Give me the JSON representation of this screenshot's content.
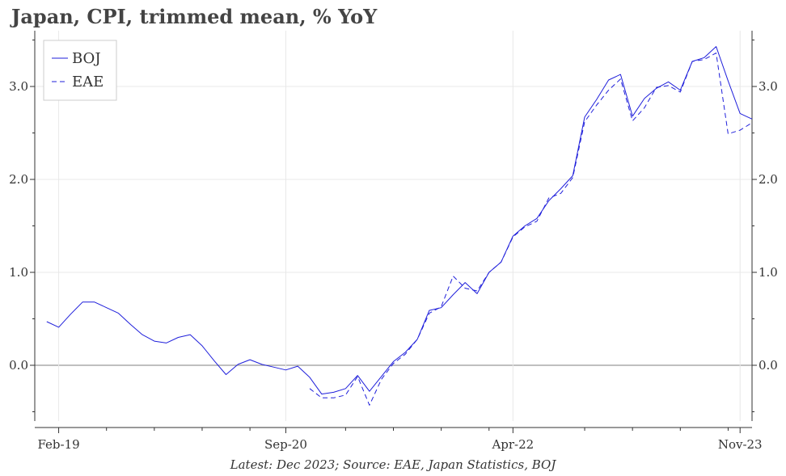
{
  "chart_data": {
    "type": "line",
    "title": "Japan, CPI, trimmed mean, % YoY",
    "xlabel": "",
    "ylabel": "",
    "source_note": "Latest: Dec 2023; Source: EAE, Japan Statistics, BOJ",
    "x_start": "2019-01",
    "x_tick_labels": [
      "Feb-19",
      "Sep-20",
      "Apr-22",
      "Nov-23"
    ],
    "y_tick_labels": [
      "0.0",
      "1.0",
      "2.0",
      "3.0"
    ],
    "ylim": [
      -0.6,
      3.6
    ],
    "xlim_months": [
      -1.0,
      59.0
    ],
    "grid": true,
    "legend_position": "top-left",
    "colors": {
      "series": "#1f1fdb",
      "zero_line": "#999999",
      "grid": "#e8e8e8",
      "axis": "#333333"
    },
    "series": [
      {
        "name": "BOJ",
        "style": "solid",
        "x": [
          "2019-01",
          "2019-02",
          "2019-03",
          "2019-04",
          "2019-05",
          "2019-06",
          "2019-07",
          "2019-08",
          "2019-09",
          "2019-10",
          "2019-11",
          "2019-12",
          "2020-01",
          "2020-02",
          "2020-03",
          "2020-04",
          "2020-05",
          "2020-06",
          "2020-07",
          "2020-08",
          "2020-09",
          "2020-10",
          "2020-11",
          "2020-12",
          "2021-01",
          "2021-02",
          "2021-03",
          "2021-04",
          "2021-05",
          "2021-06",
          "2021-07",
          "2021-08",
          "2021-09",
          "2021-10",
          "2021-11",
          "2021-12",
          "2022-01",
          "2022-02",
          "2022-03",
          "2022-04",
          "2022-05",
          "2022-06",
          "2022-07",
          "2022-08",
          "2022-09",
          "2022-10",
          "2022-11",
          "2022-12",
          "2023-01",
          "2023-02",
          "2023-03",
          "2023-04",
          "2023-05",
          "2023-06",
          "2023-07",
          "2023-08",
          "2023-09",
          "2023-10",
          "2023-11",
          "2023-12"
        ],
        "values": [
          0.47,
          0.41,
          0.55,
          0.68,
          0.68,
          0.62,
          0.56,
          0.44,
          0.33,
          0.26,
          0.24,
          0.3,
          0.33,
          0.21,
          0.05,
          -0.1,
          0.01,
          0.06,
          0.01,
          -0.02,
          -0.05,
          -0.01,
          -0.13,
          -0.31,
          -0.29,
          -0.25,
          -0.11,
          -0.28,
          -0.12,
          0.04,
          0.14,
          0.28,
          0.59,
          0.62,
          0.76,
          0.89,
          0.77,
          1.0,
          1.11,
          1.39,
          1.5,
          1.58,
          1.77,
          1.9,
          2.04,
          2.67,
          2.86,
          3.07,
          3.13,
          2.68,
          2.87,
          2.98,
          3.05,
          2.96,
          3.27,
          3.31,
          3.43,
          3.06,
          2.71,
          2.65
        ]
      },
      {
        "name": "EAE",
        "style": "dashed",
        "x": [
          "2020-11",
          "2020-12",
          "2021-01",
          "2021-02",
          "2021-03",
          "2021-04",
          "2021-05",
          "2021-06",
          "2021-07",
          "2021-08",
          "2021-09",
          "2021-10",
          "2021-11",
          "2021-12",
          "2022-01",
          "2022-02",
          "2022-03",
          "2022-04",
          "2022-05",
          "2022-06",
          "2022-07",
          "2022-08",
          "2022-09",
          "2022-10",
          "2022-11",
          "2022-12",
          "2023-01",
          "2023-02",
          "2023-03",
          "2023-04",
          "2023-05",
          "2023-06",
          "2023-07",
          "2023-08",
          "2023-09",
          "2023-10",
          "2023-11",
          "2023-12"
        ],
        "values": [
          -0.25,
          -0.35,
          -0.35,
          -0.32,
          -0.12,
          -0.43,
          -0.15,
          0.02,
          0.12,
          0.28,
          0.56,
          0.63,
          0.96,
          0.83,
          0.8,
          1.0,
          1.11,
          1.38,
          1.49,
          1.55,
          1.8,
          1.85,
          2.02,
          2.62,
          2.8,
          2.96,
          3.08,
          2.63,
          2.77,
          2.99,
          3.01,
          2.94,
          3.27,
          3.29,
          3.36,
          2.49,
          2.53,
          2.61
        ]
      }
    ]
  }
}
